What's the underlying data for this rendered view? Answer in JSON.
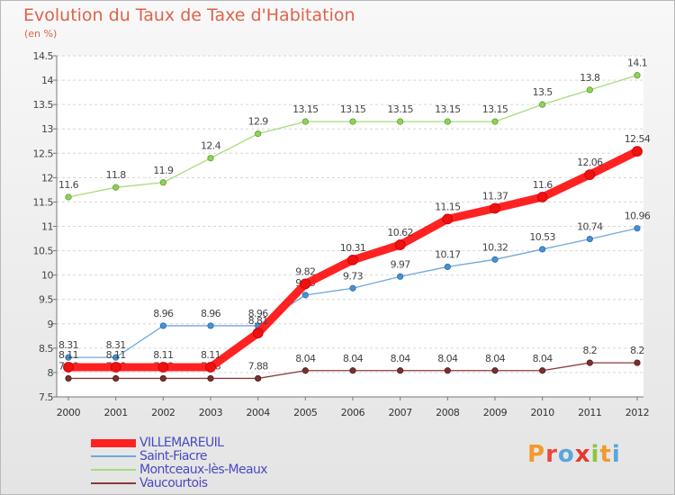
{
  "header": {
    "title": "Evolution du Taux de Taxe d'Habitation",
    "unit": "(en %)"
  },
  "brand": {
    "text": "Proxiti",
    "letter_colors": [
      "#f29a2e",
      "#e8483c",
      "#5aa7d9",
      "#e63a2e",
      "#8cc63f",
      "#f29a2e",
      "#5aa7d9"
    ]
  },
  "chart_data": {
    "type": "line",
    "title": "Evolution du Taux de Taxe d'Habitation",
    "ylabel": "(en %)",
    "xlabel": "",
    "x": [
      "2000",
      "2001",
      "2002",
      "2003",
      "2004",
      "2005",
      "2006",
      "2007",
      "2008",
      "2009",
      "2010",
      "2011",
      "2012"
    ],
    "ylim": [
      7.5,
      14.5
    ],
    "yticks": [
      "7.5",
      "8",
      "8.5",
      "9",
      "9.5",
      "10",
      "10.5",
      "11",
      "11.5",
      "12",
      "12.5",
      "13",
      "13.5",
      "14",
      "14.5"
    ],
    "grid": "horizontal",
    "legend_position": "bottom-left",
    "series": [
      {
        "name": "Montceaux-lès-Meaux",
        "color": "#8fd15a",
        "values": [
          11.6,
          11.8,
          11.9,
          12.4,
          12.9,
          13.15,
          13.15,
          13.15,
          13.15,
          13.15,
          13.5,
          13.8,
          14.1
        ],
        "labels": [
          "11.6",
          "11.8",
          "11.9",
          "12.4",
          "12.9",
          "13.15",
          "13.15",
          "13.15",
          "13.15",
          "13.15",
          "13.5",
          "13.8",
          "14.1"
        ]
      },
      {
        "name": "Saint-Fiacre",
        "color": "#5b9bd5",
        "values": [
          8.31,
          8.31,
          8.96,
          8.96,
          8.96,
          9.59,
          9.73,
          9.97,
          10.17,
          10.32,
          10.53,
          10.74,
          10.96
        ],
        "labels": [
          "8.31",
          "8.31",
          "8.96",
          "8.96",
          "8.96",
          "9.59",
          "9.73",
          "9.97",
          "10.17",
          "10.32",
          "10.53",
          "10.74",
          "10.96"
        ]
      },
      {
        "name": "Vaucourtois",
        "color": "#8a3a3a",
        "values": [
          7.88,
          7.88,
          7.88,
          7.88,
          7.88,
          8.04,
          8.04,
          8.04,
          8.04,
          8.04,
          8.04,
          8.2,
          8.2
        ],
        "labels": [
          "7.88",
          "7.88",
          "7.88",
          "7.88",
          "7.88",
          "8.04",
          "8.04",
          "8.04",
          "8.04",
          "8.04",
          "8.04",
          "8.2",
          "8.2"
        ]
      },
      {
        "name": "VILLEMAREUIL",
        "color": "#ee1111",
        "values": [
          8.11,
          8.11,
          8.11,
          8.11,
          8.81,
          9.82,
          10.31,
          10.62,
          11.15,
          11.37,
          11.6,
          12.06,
          12.54
        ],
        "labels": [
          "8.11",
          "8.11",
          "8.11",
          "8.11",
          "8.81",
          "9.82",
          "10.31",
          "10.62",
          "11.15",
          "11.37",
          "11.6",
          "12.06",
          "12.54"
        ]
      }
    ],
    "legend_order": [
      "VILLEMAREUIL",
      "Saint-Fiacre",
      "Montceaux-lès-Meaux",
      "Vaucourtois"
    ]
  }
}
